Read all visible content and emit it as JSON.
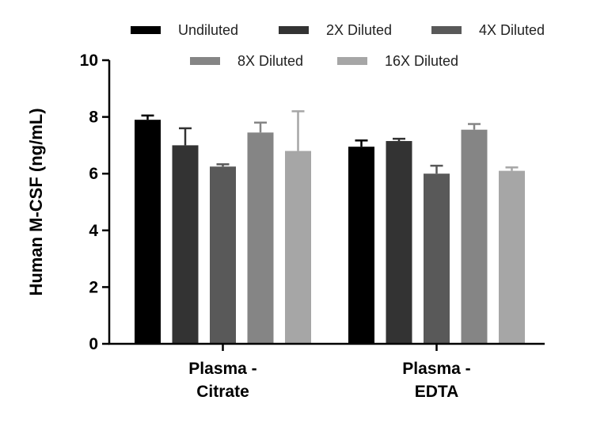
{
  "chart_data": {
    "type": "bar",
    "title": "",
    "xlabel": "",
    "ylabel": "Human  M-CSF (ng/mL)",
    "ylim": [
      0,
      10
    ],
    "yticks": [
      0,
      2,
      4,
      6,
      8,
      10
    ],
    "categories": [
      [
        "Plasma -",
        "Citrate"
      ],
      [
        "Plasma -",
        "EDTA"
      ]
    ],
    "series": [
      {
        "name": "Undiluted",
        "color": "#000000",
        "values": [
          7.9,
          6.95
        ],
        "errors": [
          0.15,
          0.22
        ]
      },
      {
        "name": "2X Diluted",
        "color": "#333333",
        "values": [
          7.0,
          7.15
        ],
        "errors": [
          0.6,
          0.08
        ]
      },
      {
        "name": "4X Diluted",
        "color": "#595959",
        "values": [
          6.25,
          6.0
        ],
        "errors": [
          0.08,
          0.28
        ]
      },
      {
        "name": "8X Diluted",
        "color": "#858585",
        "values": [
          7.45,
          7.55
        ],
        "errors": [
          0.35,
          0.2
        ]
      },
      {
        "name": "16X Diluted",
        "color": "#a6a6a6",
        "values": [
          6.8,
          6.1
        ],
        "errors": [
          1.4,
          0.12
        ]
      }
    ],
    "legend": "top",
    "grid": false
  }
}
